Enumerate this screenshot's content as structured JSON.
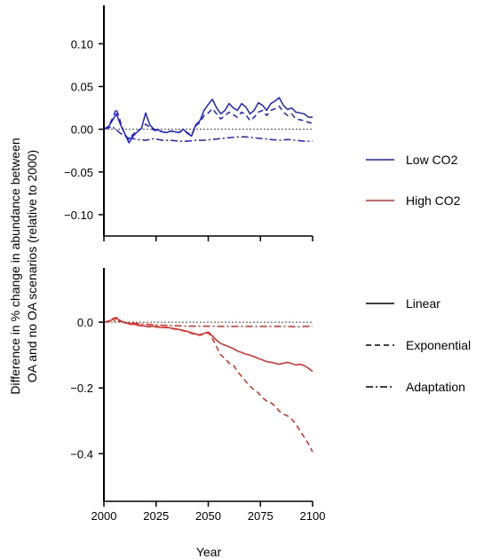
{
  "chart_data": [
    {
      "type": "line",
      "panel": "top",
      "xlabel": "Year",
      "ylabel_line1": "Difference in % change in abundance between",
      "ylabel_line2": "OA and no OA scenarios (relative to 2000)",
      "xlim": [
        2000,
        2100
      ],
      "ylim": [
        -0.125,
        0.145
      ],
      "yticks": [
        0.1,
        0.05,
        0.0,
        -0.05,
        -0.1
      ],
      "ytick_labels": [
        "0.10",
        "0.05",
        "0.00",
        "−0.05",
        "−0.10"
      ],
      "xticks": [
        2000,
        2025,
        2050,
        2075,
        2100
      ],
      "reference_line": 0,
      "color": "#1f1fd6",
      "series": [
        {
          "style": "solid",
          "x": [
            2000,
            2002,
            2004,
            2006,
            2008,
            2010,
            2012,
            2014,
            2016,
            2018,
            2020,
            2022,
            2024,
            2026,
            2028,
            2030,
            2032,
            2034,
            2036,
            2038,
            2040,
            2042,
            2044,
            2046,
            2048,
            2050,
            2052,
            2054,
            2056,
            2058,
            2060,
            2062,
            2064,
            2066,
            2068,
            2070,
            2072,
            2074,
            2076,
            2078,
            2080,
            2082,
            2084,
            2086,
            2088,
            2090,
            2092,
            2094,
            2096,
            2098,
            2100
          ],
          "y": [
            0.0,
            0.002,
            0.01,
            0.018,
            0.005,
            -0.005,
            -0.016,
            -0.008,
            -0.003,
            0.001,
            0.019,
            0.005,
            0.0,
            -0.001,
            -0.003,
            -0.004,
            -0.002,
            -0.003,
            -0.004,
            0.0,
            -0.005,
            -0.008,
            0.005,
            0.01,
            0.022,
            0.029,
            0.035,
            0.025,
            0.018,
            0.022,
            0.03,
            0.025,
            0.022,
            0.03,
            0.026,
            0.018,
            0.022,
            0.031,
            0.028,
            0.022,
            0.03,
            0.033,
            0.037,
            0.028,
            0.023,
            0.025,
            0.02,
            0.019,
            0.018,
            0.014,
            0.014
          ]
        },
        {
          "style": "dashed",
          "x": [
            2000,
            2002,
            2004,
            2006,
            2008,
            2010,
            2012,
            2014,
            2016,
            2018,
            2020,
            2022,
            2024,
            2026,
            2028,
            2030,
            2032,
            2034,
            2036,
            2038,
            2040,
            2042,
            2044,
            2046,
            2048,
            2050,
            2052,
            2054,
            2056,
            2058,
            2060,
            2062,
            2064,
            2066,
            2068,
            2070,
            2072,
            2074,
            2076,
            2078,
            2080,
            2082,
            2084,
            2086,
            2088,
            2090,
            2092,
            2094,
            2096,
            2098,
            2100
          ],
          "y": [
            0.0,
            0.003,
            0.012,
            0.024,
            0.008,
            -0.006,
            -0.012,
            -0.006,
            -0.002,
            0.001,
            0.006,
            0.002,
            -0.001,
            -0.002,
            -0.003,
            -0.004,
            -0.002,
            -0.003,
            -0.004,
            -0.001,
            -0.004,
            -0.007,
            0.004,
            0.008,
            0.016,
            0.019,
            0.024,
            0.018,
            0.012,
            0.016,
            0.02,
            0.017,
            0.014,
            0.02,
            0.017,
            0.01,
            0.014,
            0.02,
            0.022,
            0.016,
            0.022,
            0.024,
            0.027,
            0.02,
            0.016,
            0.018,
            0.012,
            0.011,
            0.01,
            0.008,
            0.007
          ]
        },
        {
          "style": "dashdot",
          "x": [
            2000,
            2004,
            2008,
            2012,
            2016,
            2020,
            2024,
            2028,
            2032,
            2036,
            2040,
            2044,
            2048,
            2052,
            2056,
            2060,
            2064,
            2068,
            2072,
            2076,
            2080,
            2084,
            2088,
            2092,
            2096,
            2100
          ],
          "y": [
            0.0,
            0.003,
            -0.005,
            -0.01,
            -0.012,
            -0.013,
            -0.011,
            -0.013,
            -0.013,
            -0.014,
            -0.014,
            -0.013,
            -0.013,
            -0.012,
            -0.011,
            -0.01,
            -0.009,
            -0.009,
            -0.01,
            -0.011,
            -0.012,
            -0.013,
            -0.012,
            -0.013,
            -0.014,
            -0.014
          ]
        }
      ]
    },
    {
      "type": "line",
      "panel": "bottom",
      "xlim": [
        2000,
        2100
      ],
      "ylim": [
        -0.545,
        0.165
      ],
      "yticks": [
        0.0,
        -0.2,
        -0.4
      ],
      "ytick_labels": [
        "0.0",
        "−0.2",
        "−0.4"
      ],
      "xticks": [
        2000,
        2025,
        2050,
        2075,
        2100
      ],
      "xtick_labels": [
        "2000",
        "2025",
        "2050",
        "2075",
        "2100"
      ],
      "reference_line": 0,
      "color": "#e8261f",
      "series": [
        {
          "style": "solid",
          "x": [
            2000,
            2002,
            2004,
            2006,
            2008,
            2010,
            2012,
            2014,
            2016,
            2018,
            2020,
            2022,
            2024,
            2026,
            2028,
            2030,
            2032,
            2034,
            2036,
            2038,
            2040,
            2042,
            2044,
            2046,
            2048,
            2050,
            2052,
            2054,
            2056,
            2058,
            2060,
            2062,
            2064,
            2066,
            2068,
            2070,
            2072,
            2074,
            2076,
            2078,
            2080,
            2082,
            2084,
            2086,
            2088,
            2090,
            2092,
            2094,
            2096,
            2098,
            2100
          ],
          "y": [
            0.0,
            0.002,
            0.008,
            0.012,
            0.004,
            -0.002,
            -0.004,
            -0.006,
            -0.008,
            -0.01,
            -0.012,
            -0.013,
            -0.012,
            -0.014,
            -0.016,
            -0.015,
            -0.018,
            -0.02,
            -0.022,
            -0.025,
            -0.028,
            -0.032,
            -0.036,
            -0.038,
            -0.034,
            -0.03,
            -0.042,
            -0.055,
            -0.065,
            -0.07,
            -0.075,
            -0.08,
            -0.088,
            -0.092,
            -0.097,
            -0.1,
            -0.105,
            -0.11,
            -0.115,
            -0.12,
            -0.122,
            -0.125,
            -0.128,
            -0.125,
            -0.122,
            -0.126,
            -0.13,
            -0.128,
            -0.132,
            -0.14,
            -0.15
          ]
        },
        {
          "style": "dashed",
          "x": [
            2000,
            2002,
            2004,
            2006,
            2008,
            2010,
            2012,
            2014,
            2016,
            2018,
            2020,
            2022,
            2024,
            2026,
            2028,
            2030,
            2032,
            2034,
            2036,
            2038,
            2040,
            2042,
            2044,
            2046,
            2048,
            2050,
            2052,
            2054,
            2056,
            2058,
            2060,
            2062,
            2064,
            2066,
            2068,
            2070,
            2072,
            2074,
            2076,
            2078,
            2080,
            2082,
            2084,
            2086,
            2088,
            2090,
            2092,
            2094,
            2096,
            2098,
            2100
          ],
          "y": [
            0.0,
            0.003,
            0.01,
            0.014,
            0.004,
            -0.002,
            -0.005,
            -0.007,
            -0.009,
            -0.011,
            -0.013,
            -0.014,
            -0.013,
            -0.015,
            -0.017,
            -0.016,
            -0.019,
            -0.021,
            -0.023,
            -0.026,
            -0.03,
            -0.034,
            -0.038,
            -0.04,
            -0.036,
            -0.032,
            -0.05,
            -0.075,
            -0.1,
            -0.11,
            -0.125,
            -0.13,
            -0.15,
            -0.165,
            -0.18,
            -0.195,
            -0.205,
            -0.215,
            -0.23,
            -0.24,
            -0.245,
            -0.255,
            -0.27,
            -0.28,
            -0.285,
            -0.295,
            -0.31,
            -0.33,
            -0.35,
            -0.37,
            -0.395
          ]
        },
        {
          "style": "dashdot",
          "x": [
            2000,
            2004,
            2008,
            2012,
            2016,
            2020,
            2024,
            2028,
            2032,
            2036,
            2040,
            2044,
            2048,
            2052,
            2056,
            2060,
            2064,
            2068,
            2072,
            2076,
            2080,
            2084,
            2088,
            2092,
            2096,
            2100
          ],
          "y": [
            0.0,
            0.005,
            0.002,
            -0.002,
            -0.004,
            -0.006,
            -0.008,
            -0.009,
            -0.01,
            -0.011,
            -0.012,
            -0.012,
            -0.012,
            -0.012,
            -0.013,
            -0.013,
            -0.013,
            -0.013,
            -0.013,
            -0.013,
            -0.013,
            -0.013,
            -0.013,
            -0.014,
            -0.013,
            -0.012
          ]
        }
      ]
    }
  ],
  "legend": {
    "colors": [
      {
        "label": "Low CO2",
        "color": "#1f1fd6"
      },
      {
        "label": "High CO2",
        "color": "#e8261f"
      }
    ],
    "styles": [
      {
        "label": "Linear",
        "style": "solid"
      },
      {
        "label": "Exponential",
        "style": "dashed"
      },
      {
        "label": "Adaptation",
        "style": "dashdot"
      }
    ]
  }
}
